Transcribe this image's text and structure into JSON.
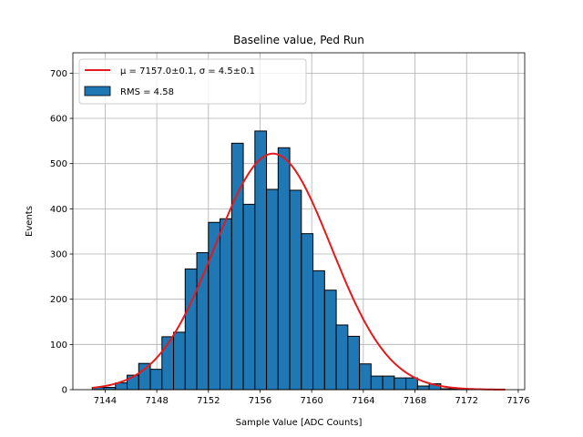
{
  "chart_data": {
    "type": "bar",
    "title": "Baseline value, Ped Run",
    "xlabel": "Sample Value [ADC Counts]",
    "ylabel": "Events",
    "xlim": [
      7141.5,
      7176.5
    ],
    "ylim": [
      0,
      745
    ],
    "xticks": [
      7144,
      7148,
      7152,
      7156,
      7160,
      7164,
      7168,
      7172,
      7176
    ],
    "yticks": [
      0,
      100,
      200,
      300,
      400,
      500,
      600,
      700
    ],
    "grid": true,
    "legend_position": "top-left",
    "histogram": {
      "name": "RMS = 4.58",
      "color": "#1f77b4",
      "edge_color": "#000000",
      "bin_width": 0.9,
      "bin_starts": [
        7143.0,
        7143.9,
        7144.8,
        7145.7,
        7146.6,
        7147.5,
        7148.4,
        7149.3,
        7150.2,
        7151.1,
        7152.0,
        7152.9,
        7153.8,
        7154.7,
        7155.6,
        7156.5,
        7157.4,
        7158.3,
        7159.2,
        7160.1,
        7161.0,
        7161.9,
        7162.8,
        7163.7,
        7164.6,
        7165.5,
        7166.4,
        7167.3,
        7168.2,
        7169.1,
        7170.0,
        7170.9,
        7171.8,
        7172.7,
        7173.6,
        7174.5
      ],
      "counts": [
        5,
        5,
        15,
        32,
        58,
        45,
        117,
        127,
        267,
        303,
        370,
        378,
        545,
        410,
        572,
        443,
        535,
        441,
        345,
        263,
        220,
        143,
        118,
        57,
        30,
        30,
        26,
        26,
        8,
        13,
        2,
        2,
        1,
        0,
        1,
        0
      ]
    },
    "fit": {
      "name_math": "μ = 7157.0±0.1, σ = 4.5±0.1",
      "mu": 7157.0,
      "sigma": 4.5,
      "amplitude": 522,
      "x_range": [
        7143.0,
        7175.0
      ],
      "color": "#e41a1c"
    }
  }
}
